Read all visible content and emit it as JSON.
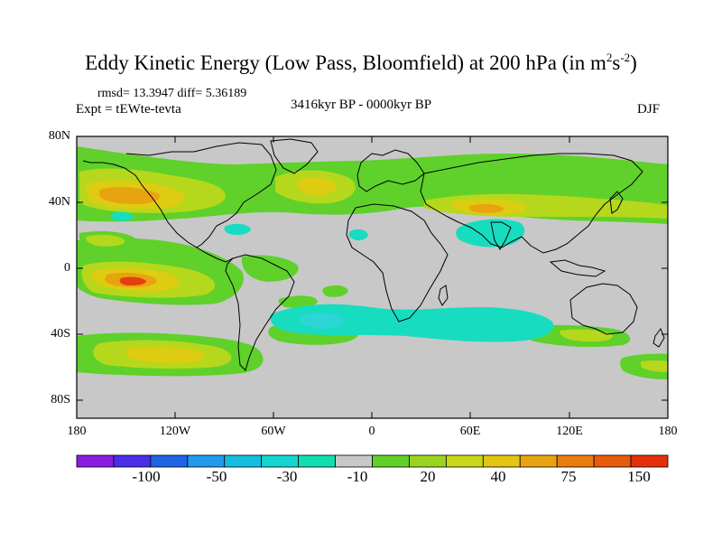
{
  "title": {
    "main": "Eddy Kinetic Energy (Low Pass, Bloomfield) at 200 hPa (in m",
    "sup1": "2",
    "mid": "s",
    "sup2": "-2",
    "end": ")"
  },
  "stats": "rmsd= 13.3947 diff= 5.36189",
  "experiment": "Expt = tEWte-tevta",
  "period": "3416kyr BP - 0000kyr BP",
  "season": "DJF",
  "lat_labels": [
    "80N",
    "40N",
    "0",
    "40S",
    "80S"
  ],
  "lon_labels": [
    "180",
    "120W",
    "60W",
    "0",
    "60E",
    "120E",
    "180"
  ],
  "colorbar": {
    "labels": [
      "-100",
      "-50",
      "-30",
      "-10",
      "20",
      "40",
      "75",
      "150"
    ],
    "colors": [
      "#8a1de0",
      "#4a2ee8",
      "#1e64e6",
      "#1f9bea",
      "#15bde0",
      "#15d6d0",
      "#10dfb0",
      "#c8c8c8",
      "#5fd12a",
      "#9bd41e",
      "#c6d818",
      "#e2c612",
      "#e8a410",
      "#ea7c10",
      "#e85a0c",
      "#e6300a"
    ]
  },
  "map": {
    "background": "#c8c8c8",
    "colors": {
      "green": "#5fd12a",
      "yellowgreen": "#b5d81c",
      "yellow": "#ddcc12",
      "orange": "#e8a410",
      "darkorange": "#ea7010",
      "red": "#e24010",
      "cyan": "#18dcc0",
      "lightcyan": "#2cd6d6"
    }
  }
}
